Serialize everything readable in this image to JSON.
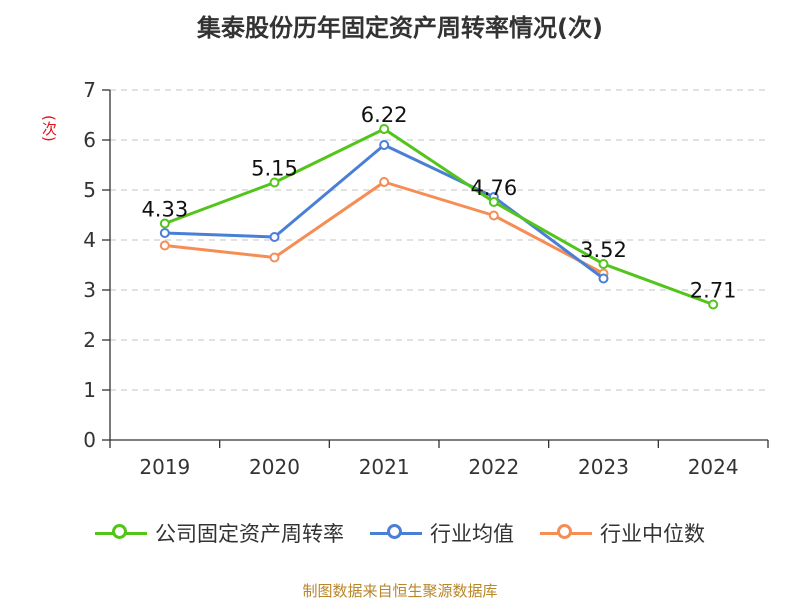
{
  "chart_data": {
    "type": "line",
    "title": "集泰股份历年固定资产周转率情况(次)",
    "ylabel": "(次)",
    "xlabel": "",
    "categories": [
      "2019",
      "2020",
      "2021",
      "2022",
      "2023",
      "2024"
    ],
    "ylim": [
      0,
      7
    ],
    "yticks": [
      0,
      1,
      2,
      3,
      4,
      5,
      6,
      7
    ],
    "grid": true,
    "legend_position": "bottom",
    "series": [
      {
        "name": "公司固定资产周转率",
        "color": "#52c41a",
        "values": [
          4.33,
          5.15,
          6.22,
          4.76,
          3.52,
          2.71
        ],
        "labels": [
          "4.33",
          "5.15",
          "6.22",
          "4.76",
          "3.52",
          "2.71"
        ]
      },
      {
        "name": "行业均值",
        "color": "#4a7fd6",
        "values": [
          4.14,
          4.06,
          5.9,
          4.86,
          3.23,
          null
        ]
      },
      {
        "name": "行业中位数",
        "color": "#f58d55",
        "values": [
          3.89,
          3.65,
          5.16,
          4.49,
          3.33,
          null
        ]
      }
    ],
    "source": "制图数据来自恒生聚源数据库"
  }
}
